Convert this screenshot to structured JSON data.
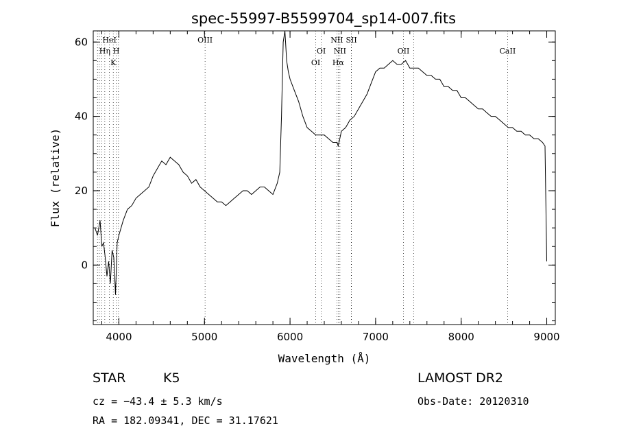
{
  "chart_data": {
    "type": "line",
    "title": "spec-55997-B5599704_sp14-007.fits",
    "xlabel": "Wavelength (Å)",
    "ylabel": "Flux (relative)",
    "xlim": [
      3700,
      9100
    ],
    "ylim": [
      -16,
      63
    ],
    "x_ticks": [
      "4000",
      "5000",
      "6000",
      "7000",
      "8000",
      "9000"
    ],
    "y_ticks": [
      "0",
      "20",
      "40",
      "60"
    ],
    "grid": false,
    "series": [
      {
        "x": [
          3720,
          3750,
          3780,
          3800,
          3820,
          3840,
          3860,
          3880,
          3900,
          3920,
          3940,
          3960,
          3980,
          4000,
          4050,
          4100,
          4150,
          4200,
          4250,
          4300,
          4350,
          4400,
          4450,
          4500,
          4550,
          4600,
          4650,
          4700,
          4750,
          4800,
          4850,
          4900,
          4950,
          5000,
          5050,
          5100,
          5150,
          5200,
          5250,
          5300,
          5350,
          5400,
          5450,
          5500,
          5550,
          5600,
          5650,
          5700,
          5750,
          5800,
          5850,
          5880,
          5900,
          5920,
          5940,
          5960,
          5980,
          6000,
          6050,
          6100,
          6150,
          6200,
          6250,
          6300,
          6350,
          6400,
          6450,
          6500,
          6550,
          6563,
          6600,
          6650,
          6700,
          6750,
          6800,
          6850,
          6900,
          6950,
          7000,
          7050,
          7100,
          7150,
          7200,
          7250,
          7300,
          7350,
          7400,
          7450,
          7500,
          7550,
          7600,
          7650,
          7700,
          7750,
          7800,
          7850,
          7900,
          7950,
          8000,
          8050,
          8100,
          8150,
          8200,
          8250,
          8300,
          8350,
          8400,
          8450,
          8500,
          8550,
          8600,
          8650,
          8700,
          8750,
          8800,
          8850,
          8900,
          8950,
          8980,
          9000
        ],
        "y": [
          10,
          8,
          12,
          5,
          6,
          2,
          -3,
          1,
          -5,
          4,
          2,
          -8,
          6,
          8,
          12,
          15,
          16,
          18,
          19,
          20,
          21,
          24,
          26,
          28,
          27,
          29,
          28,
          27,
          25,
          24,
          22,
          23,
          21,
          20,
          19,
          18,
          17,
          17,
          16,
          17,
          18,
          19,
          20,
          20,
          19,
          20,
          21,
          21,
          20,
          19,
          22,
          25,
          40,
          60,
          63,
          55,
          52,
          50,
          47,
          44,
          40,
          37,
          36,
          35,
          35,
          35,
          34,
          33,
          33,
          32,
          36,
          37,
          39,
          40,
          42,
          44,
          46,
          49,
          52,
          53,
          53,
          54,
          55,
          54,
          54,
          55,
          53,
          53,
          53,
          52,
          51,
          51,
          50,
          50,
          48,
          48,
          47,
          47,
          45,
          45,
          44,
          43,
          42,
          42,
          41,
          40,
          40,
          39,
          38,
          37,
          37,
          36,
          36,
          35,
          35,
          34,
          34,
          33,
          32,
          1
        ]
      }
    ],
    "lines": [
      {
        "label": "Hη",
        "x": 3835,
        "row": 2
      },
      {
        "label": "HeI",
        "x": 3889,
        "row": 1
      },
      {
        "label": "H",
        "x": 3970,
        "row": 2
      },
      {
        "label": "K",
        "x": 3934,
        "row": 3
      },
      {
        "label": "OIII",
        "x": 5007,
        "row": 1
      },
      {
        "label": "OI",
        "x": 6300,
        "row": 3
      },
      {
        "label": "OI",
        "x": 6364,
        "row": 2
      },
      {
        "label": "NII",
        "x": 6548,
        "row": 1
      },
      {
        "label": "NII",
        "x": 6583,
        "row": 2
      },
      {
        "label": "Hα",
        "x": 6563,
        "row": 3
      },
      {
        "label": "SII",
        "x": 6717,
        "row": 1
      },
      {
        "label": "OII",
        "x": 7325,
        "row": 2
      },
      {
        "label": "CaII",
        "x": 8542,
        "row": 2
      }
    ],
    "extra_lines_x": [
      3798,
      3771,
      3750,
      3995,
      6716,
      7444
    ]
  },
  "info": {
    "class": "STAR",
    "subclass": "K5",
    "survey": "LAMOST DR2",
    "cz": "cz = −43.4 ± 5.3 km/s",
    "obs_date": "Obs-Date: 20120310",
    "coords": "RA = 182.09341, DEC =  31.17621"
  }
}
